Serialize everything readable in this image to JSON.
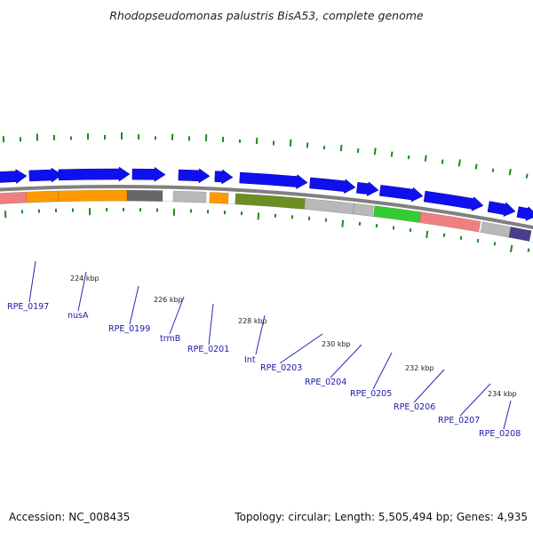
{
  "title": "Rhodopseudomonas palustris BisA53, complete genome",
  "footer": {
    "accession": "Accession: NC_008435",
    "stats": "Topology: circular; Length: 5,505,494 bp; Genes: 4,935"
  },
  "kbp_labels": [
    "224 kbp",
    "226 kbp",
    "228 kbp",
    "230 kbp",
    "232 kbp",
    "234 kbp"
  ],
  "gene_labels": [
    "RPE_0197",
    "nusA",
    "RPE_0199",
    "trmB",
    "RPE_0201",
    "Int",
    "RPE_0203",
    "RPE_0204",
    "RPE_0205",
    "RPE_0206",
    "RPE_0207",
    "RPE_0208"
  ],
  "colors": {
    "forward_gene": "#1010ee",
    "orange_cds": "#ff9a00",
    "salmon_cds": "#f08080",
    "gray_cds": "#b8b8b8",
    "dark_gray_cds": "#666666",
    "olive_cds": "#6b8e23",
    "green_cds": "#33cc33",
    "purple_cds": "#4b3c8c",
    "backbone": "#808080",
    "ticks": "#1a8c1a",
    "label_text": "#1a1aa8"
  }
}
